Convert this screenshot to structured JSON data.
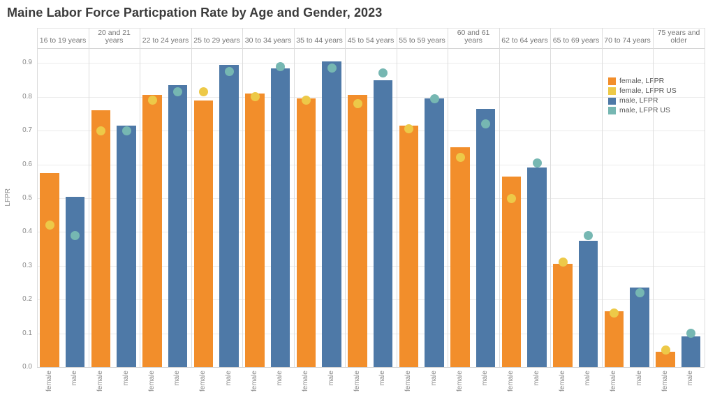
{
  "title": "Maine Labor Force Particpation Rate by Age and Gender, 2023",
  "y_axis": {
    "label": "LFPR",
    "ticks": [
      0.0,
      0.1,
      0.2,
      0.3,
      0.4,
      0.5,
      0.6,
      0.7,
      0.8,
      0.9
    ]
  },
  "x_axis": {
    "bar_categories": [
      "female",
      "male"
    ]
  },
  "legend": {
    "position": "top-right",
    "items": [
      {
        "label": "female, LFPR",
        "color": "#F28E2B"
      },
      {
        "label": "female, LFPR US",
        "color": "#EDC948"
      },
      {
        "label": "male, LFPR",
        "color": "#4E79A7"
      },
      {
        "label": "male, LFPR US",
        "color": "#76B7B2"
      }
    ]
  },
  "chart_data": {
    "type": "bar",
    "title": "Maine Labor Force Particpation Rate by Age and Gender, 2023",
    "xlabel": "",
    "ylabel": "LFPR",
    "ylim": [
      0,
      0.95
    ],
    "grid": true,
    "panels": [
      "16 to 19 years",
      "20 and 21 years",
      "22 to 24 years",
      "25 to 29 years",
      "30 to 34 years",
      "35 to 44 years",
      "45 to 54 years",
      "55 to 59 years",
      "60 and 61 years",
      "62 to 64 years",
      "65 to 69 years",
      "70 to 74 years",
      "75 years and older"
    ],
    "series": [
      {
        "name": "female, LFPR",
        "mark": "bar",
        "category": "female",
        "color": "#F28E2B",
        "values": [
          0.575,
          0.76,
          0.805,
          0.79,
          0.81,
          0.795,
          0.805,
          0.715,
          0.65,
          0.565,
          0.305,
          0.165,
          0.045
        ]
      },
      {
        "name": "female, LFPR US",
        "mark": "point",
        "category": "female",
        "color": "#EDC948",
        "values": [
          0.42,
          0.7,
          0.79,
          0.815,
          0.8,
          0.79,
          0.78,
          0.705,
          0.62,
          0.5,
          0.31,
          0.16,
          0.05
        ]
      },
      {
        "name": "male, LFPR",
        "mark": "bar",
        "category": "male",
        "color": "#4E79A7",
        "values": [
          0.505,
          0.715,
          0.835,
          0.895,
          0.885,
          0.905,
          0.85,
          0.795,
          0.765,
          0.59,
          0.375,
          0.235,
          0.09
        ]
      },
      {
        "name": "male, LFPR US",
        "mark": "point",
        "category": "male",
        "color": "#76B7B2",
        "values": [
          0.39,
          0.7,
          0.815,
          0.875,
          0.89,
          0.885,
          0.87,
          0.795,
          0.72,
          0.605,
          0.39,
          0.22,
          0.1
        ]
      }
    ]
  },
  "colors": {
    "female_bar": "#F28E2B",
    "female_us_dot": "#EDC948",
    "male_bar": "#4E79A7",
    "male_us_dot": "#76B7B2",
    "gridline": "#ebebeb",
    "frame": "#d6d6d6",
    "text_muted": "#8a8a8a"
  }
}
